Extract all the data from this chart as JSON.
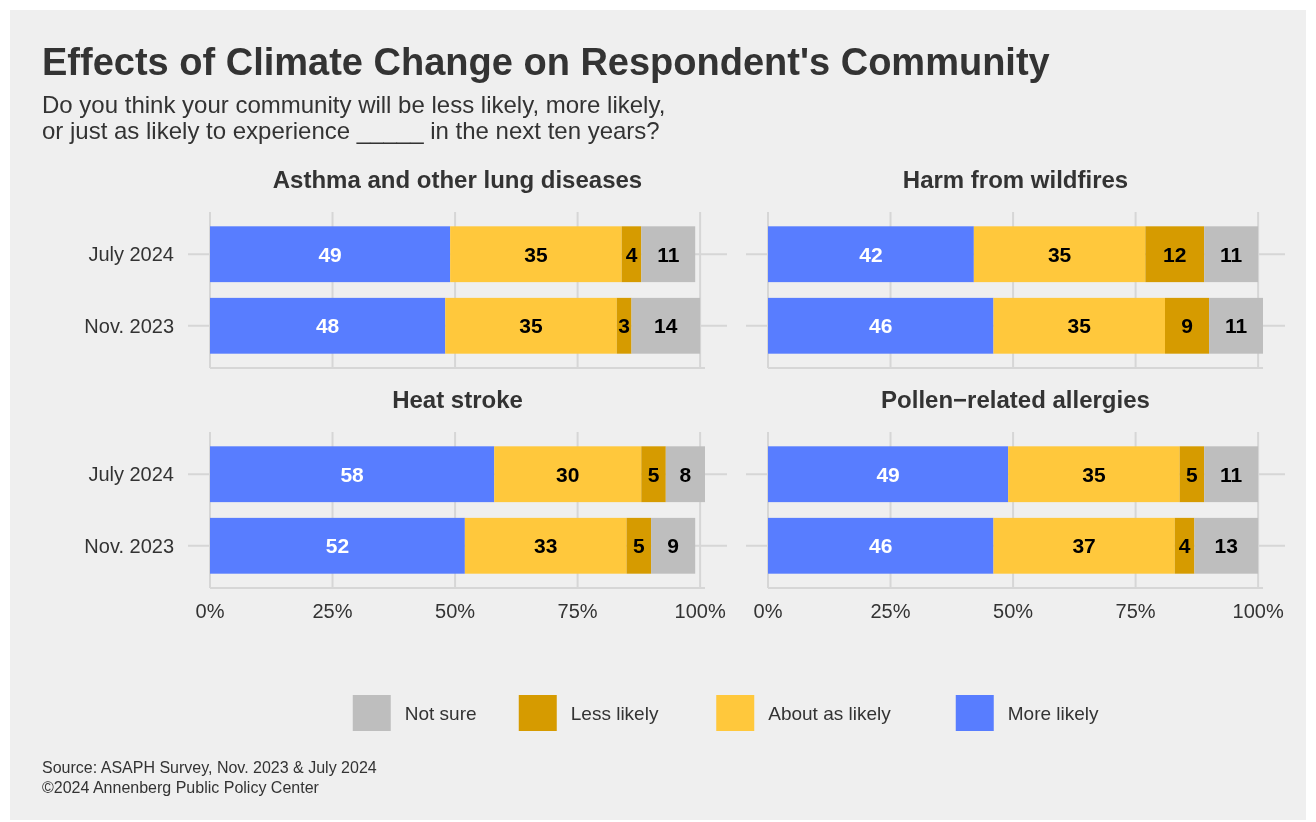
{
  "chart_data": [
    {
      "type": "bar",
      "orientation": "horizontal",
      "stacked": true,
      "title": "Asthma and other lung diseases",
      "categories": [
        "July 2024",
        "Nov. 2023"
      ],
      "series": [
        {
          "name": "More likely",
          "color": "#587dff",
          "values": [
            49,
            48
          ]
        },
        {
          "name": "About as likely",
          "color": "#ffc83c",
          "values": [
            35,
            35
          ]
        },
        {
          "name": "Less likely",
          "color": "#d69b00",
          "values": [
            4,
            3
          ]
        },
        {
          "name": "Not sure",
          "color": "#bebebe",
          "values": [
            11,
            14
          ]
        }
      ],
      "xlim": [
        0,
        101
      ],
      "xticks": [
        {
          "value": 0,
          "label": null
        },
        {
          "value": 25,
          "label": null
        },
        {
          "value": 50,
          "label": null
        },
        {
          "value": 75,
          "label": null
        },
        {
          "value": 100,
          "label": null
        }
      ],
      "grid": true,
      "data_labels": true,
      "legend": "bottom",
      "tick_labels": "y",
      "annotations": [
        "Effects of Climate Change on Respondent's Community",
        "Do you think your community will be less likely, more likely,\nor just as likely to experience _____ in the next ten years?",
        "Source: ASAPH Survey, Nov. 2023 & July 2024",
        "©2024 Annenberg Public Policy Center"
      ]
    },
    {
      "type": "bar",
      "orientation": "horizontal",
      "stacked": true,
      "title": "Harm from wildfires",
      "categories": [
        null,
        null
      ],
      "series": [
        {
          "color": "#587dff",
          "values": [
            42,
            46
          ]
        },
        {
          "color": "#ffc83c",
          "values": [
            35,
            35
          ]
        },
        {
          "color": "#d69b00",
          "values": [
            12,
            9
          ]
        },
        {
          "color": "#bebebe",
          "values": [
            11,
            11
          ]
        }
      ],
      "xlim": [
        0,
        101
      ],
      "xticks": [
        {
          "value": 0,
          "label": null
        },
        {
          "value": 25,
          "label": null
        },
        {
          "value": 50,
          "label": null
        },
        {
          "value": 75,
          "label": null
        },
        {
          "value": 100,
          "label": null
        }
      ],
      "grid": true,
      "data_labels": true,
      "tick_labels": false
    },
    {
      "type": "bar",
      "orientation": "horizontal",
      "stacked": true,
      "title": "Heat stroke",
      "categories": [
        "July 2024",
        "Nov. 2023"
      ],
      "series": [
        {
          "color": "#587dff",
          "values": [
            58,
            52
          ]
        },
        {
          "color": "#ffc83c",
          "values": [
            30,
            33
          ]
        },
        {
          "color": "#d69b00",
          "values": [
            5,
            5
          ]
        },
        {
          "color": "#bebebe",
          "values": [
            8,
            9
          ]
        }
      ],
      "xlim": [
        0,
        101
      ],
      "xticks": [
        {
          "value": 0,
          "label": "0%"
        },
        {
          "value": 25,
          "label": "25%"
        },
        {
          "value": 50,
          "label": "50%"
        },
        {
          "value": 75,
          "label": "75%"
        },
        {
          "value": 100,
          "label": "100%"
        }
      ],
      "grid": true,
      "data_labels": true
    },
    {
      "type": "bar",
      "orientation": "horizontal",
      "stacked": true,
      "title": "Pollen−related allergies",
      "categories": [
        null,
        null
      ],
      "series": [
        {
          "color": "#587dff",
          "values": [
            49,
            46
          ]
        },
        {
          "color": "#ffc83c",
          "values": [
            35,
            37
          ]
        },
        {
          "color": "#d69b00",
          "values": [
            5,
            4
          ]
        },
        {
          "color": "#bebebe",
          "values": [
            11,
            13
          ]
        }
      ],
      "xlim": [
        0,
        101
      ],
      "xticks": [
        {
          "value": 0,
          "label": "0%"
        },
        {
          "value": 25,
          "label": "25%"
        },
        {
          "value": 50,
          "label": "50%"
        },
        {
          "value": 75,
          "label": "75%"
        },
        {
          "value": 100,
          "label": "100%"
        }
      ],
      "grid": true,
      "data_labels": true,
      "tick_labels": "x"
    }
  ]
}
